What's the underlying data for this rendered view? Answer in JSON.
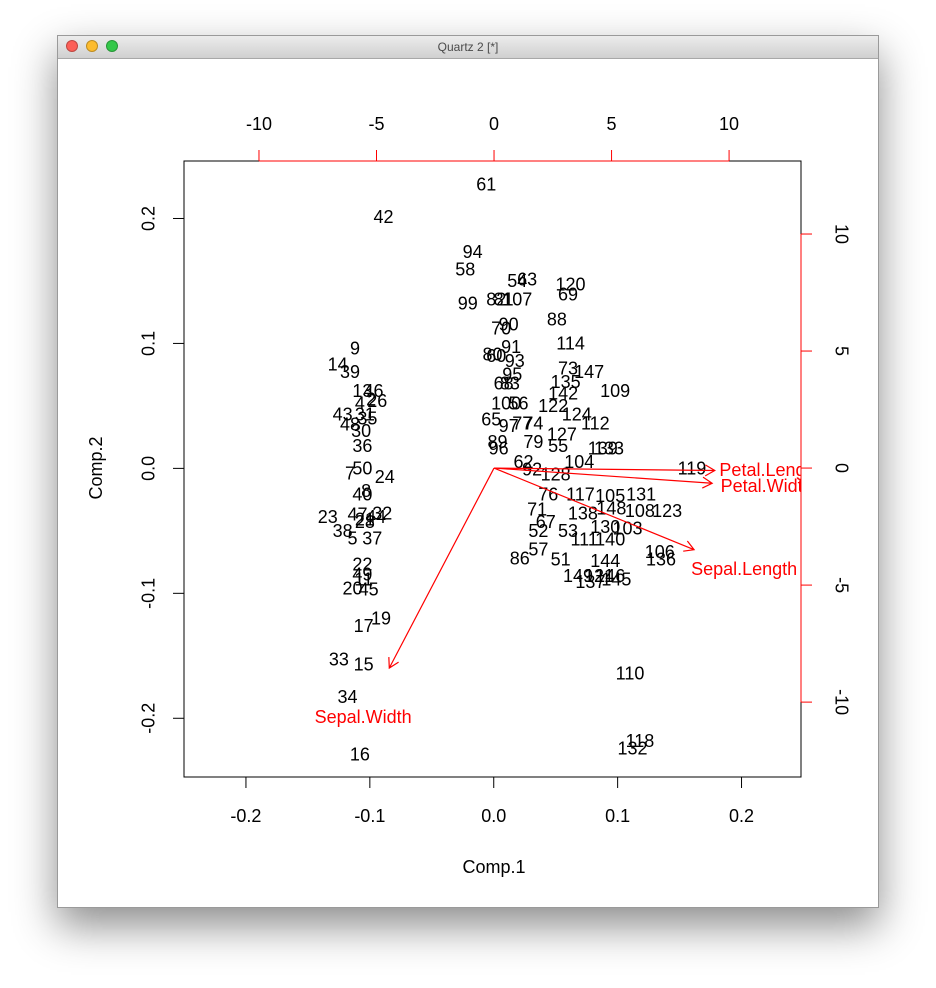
{
  "window": {
    "title": "Quartz 2 [*]"
  },
  "chart_data": {
    "type": "biplot",
    "xlabel": "Comp.1",
    "ylabel": "Comp.2",
    "xlim": [
      -0.25,
      0.248
    ],
    "ylim": [
      -0.247,
      0.246
    ],
    "xticks": [
      -0.2,
      -0.1,
      {
        "value": 0,
        "label": "0.0"
      },
      0.1,
      0.2
    ],
    "yticks": [
      -0.2,
      -0.1,
      {
        "value": 0,
        "label": "0.0"
      },
      0.1,
      0.2
    ],
    "x2lim": [
      -13.19,
      13.06
    ],
    "y2lim": [
      -13.2,
      13.12
    ],
    "x2ticks": [
      -10,
      -5,
      0,
      5,
      10
    ],
    "y2ticks": [
      -10,
      -5,
      0,
      5,
      10
    ],
    "points": {
      "color": "#000000",
      "labels": [
        "61",
        "42",
        "94",
        "58",
        "54",
        "63",
        "120",
        "69",
        "99",
        "82",
        "81",
        "107",
        "88",
        "70",
        "90",
        "9",
        "114",
        "91",
        "80",
        "60",
        "93",
        "14",
        "39",
        "73",
        "147",
        "95",
        "68",
        "83",
        "135",
        "109",
        "13",
        "46",
        "142",
        "4",
        "26",
        "2",
        "100",
        "56",
        "122",
        "43",
        "31",
        "35",
        "124",
        "112",
        "65",
        "77",
        "74",
        "97",
        "48",
        "30",
        "127",
        "36",
        "89",
        "96",
        "79",
        "55",
        "139",
        "133",
        "62",
        "104",
        "50",
        "7",
        "24",
        "119",
        "92",
        "128",
        "76",
        "117",
        "105",
        "131",
        "148",
        "108",
        "123",
        "71",
        "138",
        "40",
        "8",
        "32",
        "23",
        "47",
        "21",
        "44",
        "38",
        "28",
        "5",
        "37",
        "67",
        "52",
        "53",
        "130",
        "103",
        "111",
        "140",
        "57",
        "86",
        "51",
        "144",
        "106",
        "136",
        "149",
        "121",
        "146",
        "137",
        "145",
        "22",
        "49",
        "11",
        "20",
        "45",
        "19",
        "17",
        "33",
        "15",
        "34",
        "16",
        "110",
        "118",
        "132"
      ],
      "x": [
        -0.006,
        -0.089,
        -0.017,
        -0.023,
        0.019,
        0.027,
        0.062,
        0.06,
        -0.021,
        0.002,
        0.008,
        0.019,
        0.051,
        0.006,
        0.012,
        -0.112,
        0.062,
        0.014,
        -0.001,
        0.002,
        0.017,
        -0.126,
        -0.116,
        0.06,
        0.077,
        0.015,
        0.008,
        0.013,
        0.058,
        0.098,
        -0.106,
        -0.097,
        0.056,
        -0.108,
        -0.094,
        -0.099,
        0.01,
        0.02,
        0.048,
        -0.122,
        -0.104,
        -0.102,
        0.067,
        0.082,
        -0.002,
        0.023,
        0.032,
        0.012,
        -0.116,
        -0.107,
        0.055,
        -0.106,
        0.003,
        0.004,
        0.032,
        0.052,
        0.088,
        0.093,
        0.024,
        0.069,
        -0.106,
        -0.116,
        -0.088,
        0.16,
        0.031,
        0.05,
        0.044,
        0.07,
        0.094,
        0.119,
        0.095,
        0.118,
        0.14,
        0.035,
        0.072,
        -0.106,
        -0.103,
        -0.09,
        -0.134,
        -0.11,
        -0.104,
        -0.095,
        -0.122,
        -0.104,
        -0.114,
        -0.098,
        0.042,
        0.036,
        0.06,
        0.09,
        0.108,
        0.073,
        0.094,
        0.036,
        0.021,
        0.054,
        0.09,
        0.134,
        0.135,
        0.068,
        0.085,
        0.094,
        0.078,
        0.099,
        -0.106,
        -0.106,
        -0.105,
        -0.114,
        -0.101,
        -0.091,
        -0.105,
        -0.125,
        -0.105,
        -0.118,
        -0.108,
        0.11,
        0.118,
        0.112
      ],
      "y": [
        0.226,
        0.2,
        0.172,
        0.158,
        0.149,
        0.15,
        0.146,
        0.138,
        0.131,
        0.134,
        0.134,
        0.134,
        0.118,
        0.111,
        0.114,
        0.095,
        0.099,
        0.096,
        0.09,
        0.089,
        0.085,
        0.082,
        0.076,
        0.079,
        0.076,
        0.074,
        0.067,
        0.067,
        0.068,
        0.061,
        0.061,
        0.061,
        0.059,
        0.051,
        0.053,
        0.054,
        0.051,
        0.051,
        0.049,
        0.042,
        0.042,
        0.039,
        0.042,
        0.035,
        0.038,
        0.035,
        0.035,
        0.033,
        0.034,
        0.029,
        0.026,
        0.017,
        0.02,
        0.015,
        0.02,
        0.017,
        0.015,
        0.015,
        0.004,
        0.004,
        -0.001,
        -0.005,
        -0.008,
        -0.001,
        -0.002,
        -0.006,
        -0.022,
        -0.022,
        -0.023,
        -0.022,
        -0.033,
        -0.035,
        -0.035,
        -0.034,
        -0.037,
        -0.022,
        -0.019,
        -0.037,
        -0.04,
        -0.038,
        -0.042,
        -0.04,
        -0.051,
        -0.044,
        -0.057,
        -0.057,
        -0.044,
        -0.051,
        -0.051,
        -0.048,
        -0.049,
        -0.058,
        -0.058,
        -0.066,
        -0.073,
        -0.074,
        -0.075,
        -0.068,
        -0.074,
        -0.087,
        -0.087,
        -0.087,
        -0.092,
        -0.09,
        -0.078,
        -0.086,
        -0.09,
        -0.097,
        -0.098,
        -0.121,
        -0.127,
        -0.154,
        -0.158,
        -0.184,
        -0.23,
        -0.165,
        -0.219,
        -0.225
      ]
    },
    "variables": {
      "color": "#ff0000",
      "names": [
        "Sepal.Length",
        "Sepal.Width",
        "Petal.Length",
        "Petal.Width"
      ],
      "x": [
        10.64,
        -5.57,
        11.74,
        11.6
      ],
      "y": [
        -4.36,
        -10.68,
        -0.13,
        -0.81
      ]
    }
  }
}
